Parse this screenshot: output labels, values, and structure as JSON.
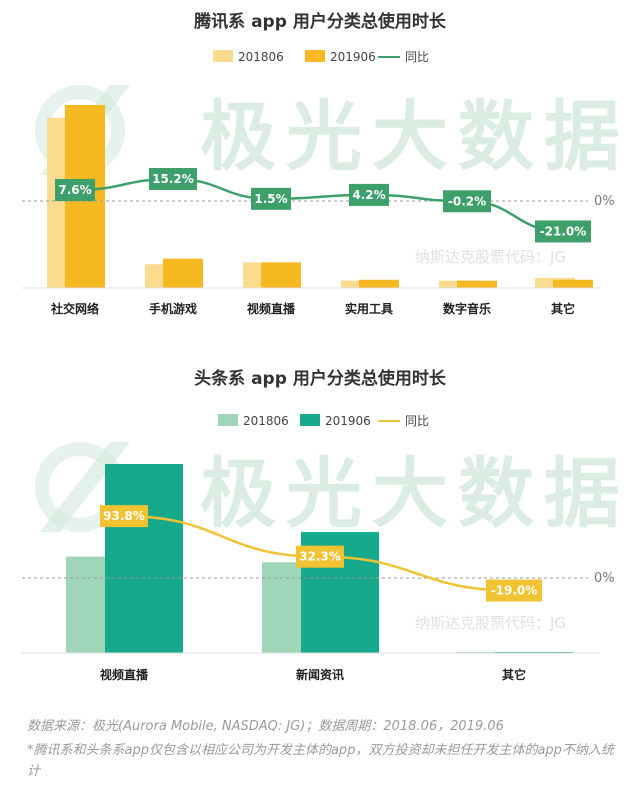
{
  "watermark": {
    "brand": "极光大数据",
    "ticker": "纳斯达克股票代码：JG"
  },
  "chart_data": [
    {
      "type": "bar",
      "title": "腾讯系 app 用户分类总使用时长",
      "categories": [
        "社交网络",
        "手机游戏",
        "视频直播",
        "实用工具",
        "数字音乐",
        "其它"
      ],
      "series": [
        {
          "name": "201806",
          "values": [
            93,
            13,
            14,
            4,
            4,
            5.5
          ],
          "color": "#fbdc8e"
        },
        {
          "name": "201906",
          "values": [
            100,
            16,
            14,
            4.5,
            4,
            4.5
          ],
          "color": "#f6b922"
        }
      ],
      "line": {
        "name": "同比",
        "values": [
          7.6,
          15.2,
          1.5,
          4.2,
          -0.2,
          -21.0
        ],
        "labels": [
          "7.6%",
          "15.2%",
          "1.5%",
          "4.2%",
          "-0.2%",
          "-21.0%"
        ],
        "color": "#3d9f6a"
      },
      "zero_label": "0%",
      "value_unit": "relative (201906 社交网络 = 100)"
    },
    {
      "type": "bar",
      "title": "头条系 app 用户分类总使用时长",
      "categories": [
        "视频直播",
        "新闻资讯",
        "其它"
      ],
      "series": [
        {
          "name": "201806",
          "values": [
            51,
            48,
            0.5
          ],
          "color": "#9fd6b7"
        },
        {
          "name": "201906",
          "values": [
            100,
            64,
            0.5
          ],
          "color": "#17a98b"
        }
      ],
      "line": {
        "name": "同比",
        "values": [
          93.8,
          32.3,
          -19.0
        ],
        "labels": [
          "93.8%",
          "32.3%",
          "-19.0%"
        ],
        "color": "#f1c232"
      },
      "zero_label": "0%",
      "value_unit": "relative (201906 视频直播 = 100)"
    }
  ],
  "footer": {
    "source": "数据来源：极光(Aurora Mobile, NASDAQ: JG)；数据周期：2018.06，2019.06",
    "note": "*腾讯系和头条系app仅包含以相应公司为开发主体的app，双方投资却未担任开发主体的app不纳入统计"
  }
}
